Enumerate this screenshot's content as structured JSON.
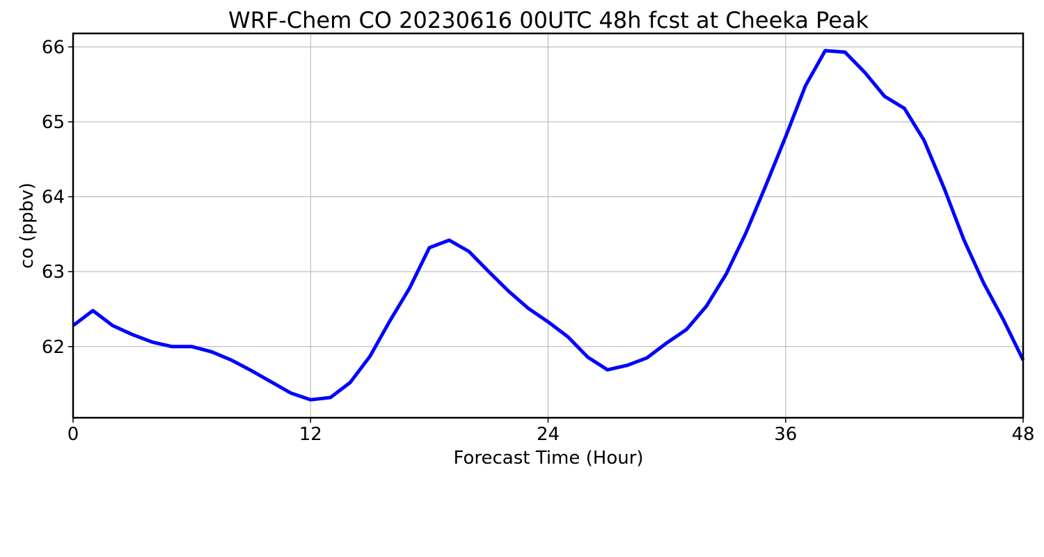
{
  "chart_data": {
    "type": "line",
    "title": "WRF-Chem CO  20230616 00UTC 48h fcst at Cheeka Peak",
    "xlabel": "Forecast Time (Hour)",
    "ylabel": "co  (ppbv)",
    "xlim": [
      0,
      48
    ],
    "ylim": [
      61.05,
      66.18
    ],
    "xticks": [
      0,
      12,
      24,
      36,
      48
    ],
    "xtick_labels": [
      "0",
      "12",
      "24",
      "36",
      "48"
    ],
    "yticks": [
      62,
      63,
      64,
      65,
      66
    ],
    "ytick_labels": [
      "62",
      "63",
      "64",
      "65",
      "66"
    ],
    "grid": true,
    "series": [
      {
        "color": "#0000ff",
        "x": [
          0,
          1,
          2,
          3,
          4,
          5,
          6,
          7,
          8,
          9,
          10,
          11,
          12,
          13,
          14,
          15,
          16,
          17,
          18,
          19,
          20,
          21,
          22,
          23,
          24,
          25,
          26,
          27,
          28,
          29,
          30,
          31,
          32,
          33,
          34,
          35,
          36,
          37,
          38,
          39,
          40,
          41,
          42,
          43,
          44,
          45,
          46,
          47,
          48
        ],
        "values": [
          62.28,
          62.48,
          62.28,
          62.16,
          62.06,
          62.0,
          62.0,
          61.93,
          61.82,
          61.68,
          61.53,
          61.38,
          61.29,
          61.32,
          61.52,
          61.87,
          62.34,
          62.78,
          63.32,
          63.42,
          63.27,
          63.0,
          62.74,
          62.51,
          62.33,
          62.13,
          61.86,
          61.69,
          61.75,
          61.85,
          62.05,
          62.23,
          62.54,
          62.97,
          63.52,
          64.15,
          64.8,
          65.48,
          65.95,
          65.93,
          65.66,
          65.34,
          65.18,
          64.75,
          64.12,
          63.43,
          62.85,
          62.36,
          61.82
        ]
      }
    ]
  }
}
